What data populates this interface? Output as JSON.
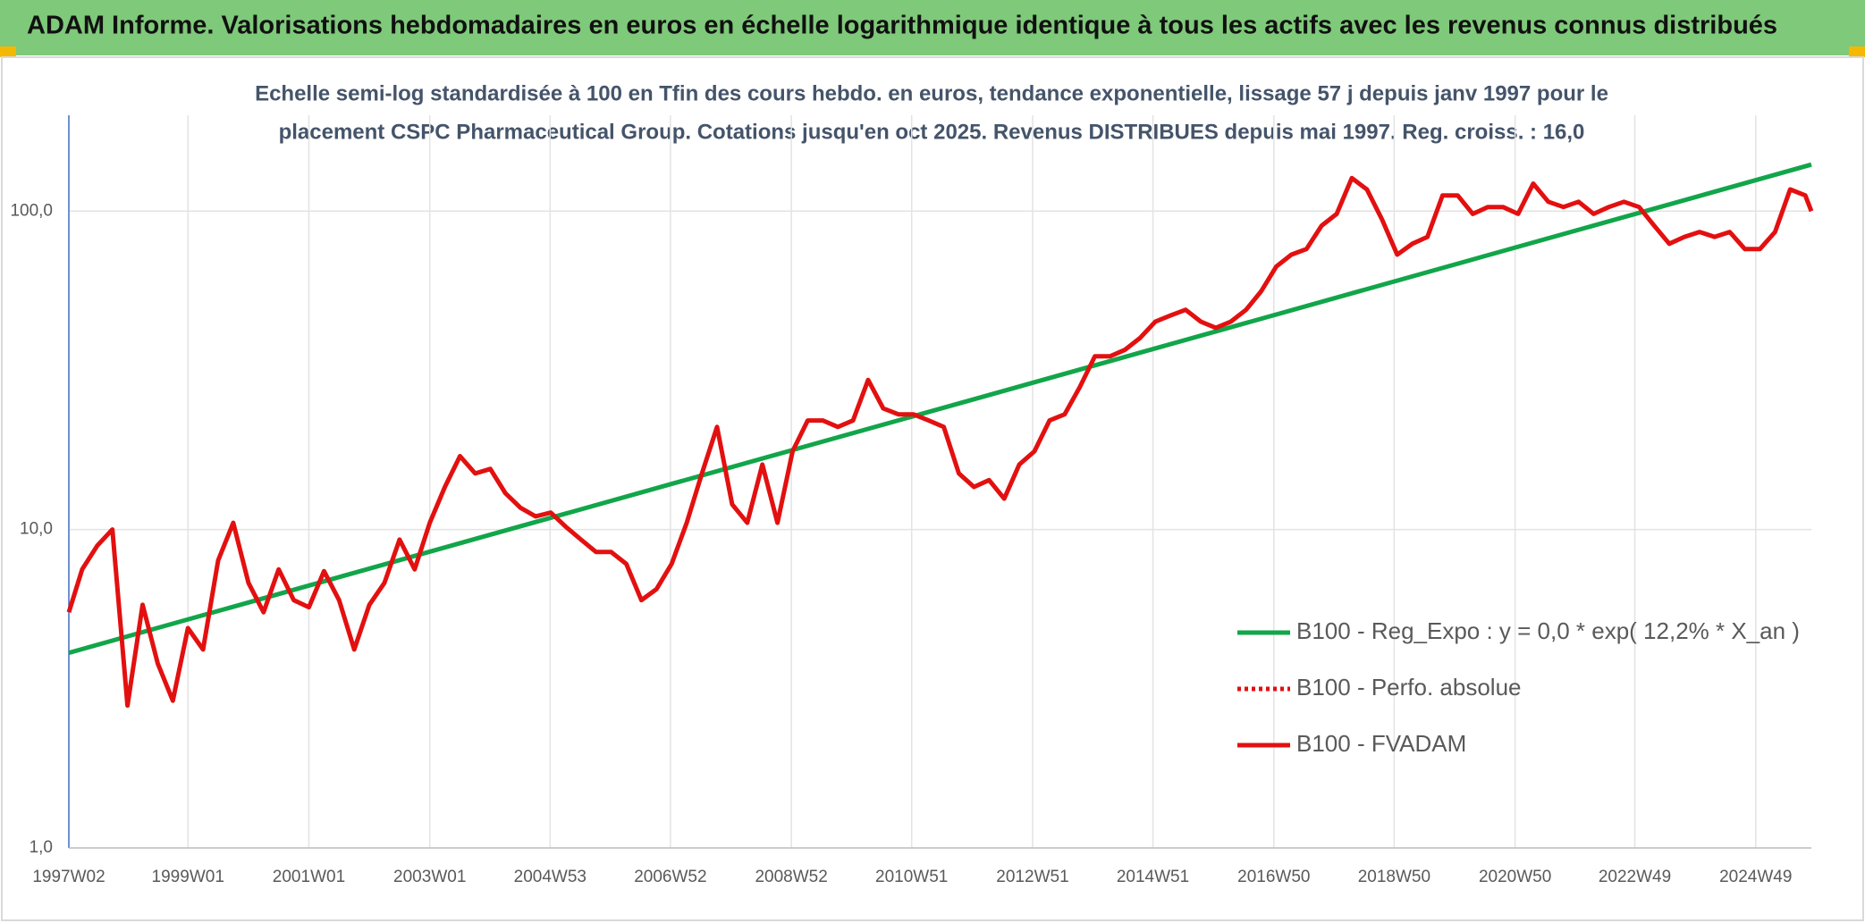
{
  "chart_data": {
    "type": "line",
    "header": "ADAM Informe. Valorisations hebdomadaires en euros en échelle logarithmique identique à tous les actifs avec les revenus connus distribués",
    "subtitle": [
      "Echelle semi-log standardisée à 100 en Tfin des cours hebdo. en euros, tendance exponentielle, lissage 57 j depuis janv 1997 pour le",
      "placement CSPC Pharmaceutical Group. Cotations jusqu'en oct 2025. Revenus DISTRIBUES depuis mai 1997. Reg. croiss. : 16,0"
    ],
    "log_scale": true,
    "grid": true,
    "legend": "right",
    "ylim": [
      1,
      200
    ],
    "yticks": [
      {
        "value": 1,
        "label": "1,0"
      },
      {
        "value": 10,
        "label": "10,0"
      },
      {
        "value": 100,
        "label": "100,0"
      }
    ],
    "xlim": [
      1997.03,
      2025.85
    ],
    "xticks": [
      {
        "value": 1997.03,
        "label": "1997W02"
      },
      {
        "value": 1999.0,
        "label": "1999W01"
      },
      {
        "value": 2001.0,
        "label": "2001W01"
      },
      {
        "value": 2003.0,
        "label": "2003W01"
      },
      {
        "value": 2004.99,
        "label": "2004W53"
      },
      {
        "value": 2006.98,
        "label": "2006W52"
      },
      {
        "value": 2008.98,
        "label": "2008W52"
      },
      {
        "value": 2010.97,
        "label": "2010W51"
      },
      {
        "value": 2012.97,
        "label": "2012W51"
      },
      {
        "value": 2014.96,
        "label": "2014W51"
      },
      {
        "value": 2016.96,
        "label": "2016W50"
      },
      {
        "value": 2018.95,
        "label": "2018W50"
      },
      {
        "value": 2020.95,
        "label": "2020W50"
      },
      {
        "value": 2022.93,
        "label": "2022W49"
      },
      {
        "value": 2024.93,
        "label": "2024W49"
      }
    ],
    "series": [
      {
        "name": "B100 - Reg_Expo : y = 0,0 * exp( 12,2% *  X_an )",
        "color": "#12a54a",
        "style": "solid",
        "x": [
          1997.03,
          2025.85
        ],
        "values": [
          4.1,
          140
        ]
      },
      {
        "name": "B100 - Perfo. absolue",
        "color": "#e31010",
        "style": "dotted",
        "x": [],
        "values": []
      },
      {
        "name": "B100 - FVADAM",
        "color": "#e31010",
        "style": "solid",
        "x": [
          1997.03,
          1997.25,
          1997.5,
          1997.75,
          1998.0,
          1998.25,
          1998.5,
          1998.75,
          1999.0,
          1999.25,
          1999.5,
          1999.75,
          2000.0,
          2000.25,
          2000.5,
          2000.75,
          2001.0,
          2001.25,
          2001.5,
          2001.75,
          2002.0,
          2002.25,
          2002.5,
          2002.75,
          2003.0,
          2003.25,
          2003.5,
          2003.75,
          2004.0,
          2004.25,
          2004.5,
          2004.75,
          2005.0,
          2005.25,
          2005.5,
          2005.75,
          2006.0,
          2006.25,
          2006.5,
          2006.75,
          2007.0,
          2007.25,
          2007.5,
          2007.75,
          2008.0,
          2008.25,
          2008.5,
          2008.75,
          2009.0,
          2009.25,
          2009.5,
          2009.75,
          2010.0,
          2010.25,
          2010.5,
          2010.75,
          2011.0,
          2011.25,
          2011.5,
          2011.75,
          2012.0,
          2012.25,
          2012.5,
          2012.75,
          2013.0,
          2013.25,
          2013.5,
          2013.75,
          2014.0,
          2014.25,
          2014.5,
          2014.75,
          2015.0,
          2015.25,
          2015.5,
          2015.75,
          2016.0,
          2016.25,
          2016.5,
          2016.75,
          2017.0,
          2017.25,
          2017.5,
          2017.75,
          2018.0,
          2018.25,
          2018.5,
          2018.75,
          2019.0,
          2019.25,
          2019.5,
          2019.75,
          2020.0,
          2020.25,
          2020.5,
          2020.75,
          2021.0,
          2021.25,
          2021.5,
          2021.75,
          2022.0,
          2022.25,
          2022.5,
          2022.75,
          2023.0,
          2023.25,
          2023.5,
          2023.75,
          2024.0,
          2024.25,
          2024.5,
          2024.75,
          2025.0,
          2025.25,
          2025.5,
          2025.75,
          2025.85
        ],
        "values": [
          5.5,
          7.5,
          8.9,
          10,
          2.8,
          5.8,
          3.8,
          2.9,
          4.9,
          4.2,
          8,
          10.5,
          6.8,
          5.5,
          7.5,
          6,
          5.7,
          7.4,
          6,
          4.2,
          5.8,
          6.8,
          9.3,
          7.5,
          10.5,
          13.6,
          17,
          15,
          15.5,
          13,
          11.7,
          11,
          11.3,
          10.2,
          9.3,
          8.5,
          8.5,
          7.8,
          6,
          6.5,
          7.8,
          10.5,
          15,
          21,
          12,
          10.5,
          16,
          10.5,
          17.6,
          22,
          22,
          21,
          22,
          29.5,
          24,
          23,
          23,
          22,
          21,
          15,
          13.6,
          14.3,
          12.5,
          16,
          17.6,
          22,
          23,
          28,
          35,
          35,
          36.7,
          40,
          45,
          47,
          49,
          45,
          43,
          45,
          49,
          56,
          67,
          73,
          76,
          90,
          98,
          127,
          117,
          94,
          73,
          79,
          83,
          112,
          112,
          98,
          103,
          103,
          98,
          122,
          107,
          103,
          107,
          98,
          103,
          107,
          103,
          90,
          79,
          83,
          86,
          83,
          86,
          76,
          76,
          86,
          117,
          112,
          100
        ]
      }
    ]
  }
}
